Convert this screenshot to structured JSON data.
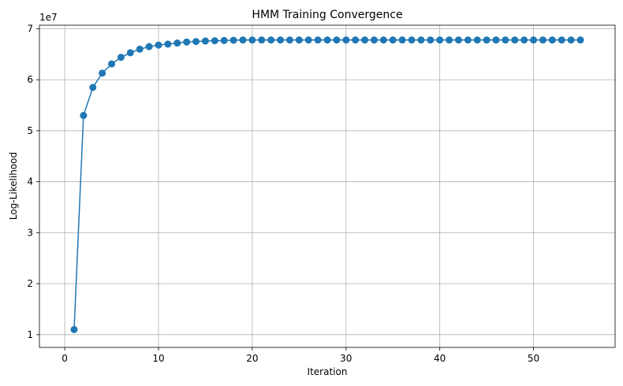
{
  "chart_data": {
    "type": "line",
    "title": "HMM Training Convergence",
    "xlabel": "Iteration",
    "ylabel": "Log-Likelihood",
    "y_offset_text": "1e7",
    "xlim": [
      -2.7,
      58.7
    ],
    "ylim": [
      0.75,
      7.07
    ],
    "x_ticks": [
      0,
      10,
      20,
      30,
      40,
      50
    ],
    "y_ticks": [
      1,
      2,
      3,
      4,
      5,
      6,
      7
    ],
    "grid": true,
    "series": [
      {
        "color": "#1f77b4",
        "marker": "circle",
        "x": [
          1,
          2,
          3,
          4,
          5,
          6,
          7,
          8,
          9,
          10,
          11,
          12,
          13,
          14,
          15,
          16,
          17,
          18,
          19,
          20,
          21,
          22,
          23,
          24,
          25,
          26,
          27,
          28,
          29,
          30,
          31,
          32,
          33,
          34,
          35,
          36,
          37,
          38,
          39,
          40,
          41,
          42,
          43,
          44,
          45,
          46,
          47,
          48,
          49,
          50,
          51,
          52,
          53,
          54,
          55
        ],
        "y": [
          1.1,
          5.3,
          5.85,
          6.13,
          6.31,
          6.44,
          6.53,
          6.6,
          6.65,
          6.68,
          6.7,
          6.72,
          6.74,
          6.75,
          6.76,
          6.765,
          6.77,
          6.775,
          6.78,
          6.78,
          6.78,
          6.78,
          6.78,
          6.78,
          6.78,
          6.78,
          6.78,
          6.78,
          6.78,
          6.78,
          6.78,
          6.78,
          6.78,
          6.78,
          6.78,
          6.78,
          6.78,
          6.78,
          6.78,
          6.78,
          6.78,
          6.78,
          6.78,
          6.78,
          6.78,
          6.78,
          6.78,
          6.78,
          6.78,
          6.78,
          6.78,
          6.78,
          6.78,
          6.78,
          6.78
        ]
      }
    ]
  }
}
